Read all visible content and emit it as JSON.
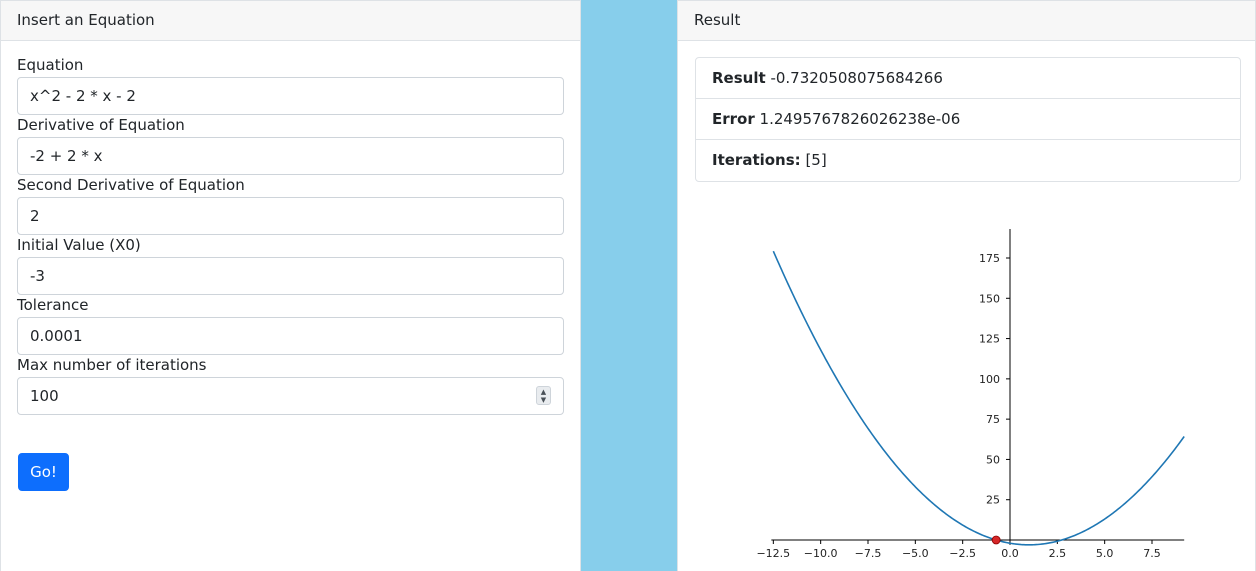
{
  "left_panel": {
    "title": "Insert an Equation",
    "fields": [
      {
        "label": "Equation",
        "value": "x^2 - 2 * x - 2"
      },
      {
        "label": "Derivative of Equation",
        "value": "-2 + 2 * x"
      },
      {
        "label": "Second Derivative of Equation",
        "value": "2"
      },
      {
        "label": "Initial Value (X0)",
        "value": "-3"
      },
      {
        "label": "Tolerance",
        "value": "0.0001"
      },
      {
        "label": "Max number of iterations",
        "value": "100"
      }
    ],
    "go_label": "Go!"
  },
  "right_panel": {
    "title": "Result",
    "result_label": "Result",
    "result_value": "-0.7320508075684266",
    "error_label": "Error",
    "error_value": "1.2495767826026238e-06",
    "iterations_label": "Iterations:",
    "iterations_value": "[5]"
  },
  "colors": {
    "accent": "#0d6efd",
    "spacer": "#87ceeb",
    "curve": "#1f77b4",
    "root_marker": "#d62728"
  },
  "chart_data": {
    "type": "line",
    "title": "",
    "xlabel": "",
    "ylabel": "",
    "function": "x^2 - 2 * x - 2",
    "x_range": [
      -12.5,
      9.2
    ],
    "ylim": [
      -3,
      193
    ],
    "xticks": [
      -12.5,
      -10.0,
      -7.5,
      -5.0,
      -2.5,
      0.0,
      2.5,
      5.0,
      7.5
    ],
    "xtick_labels": [
      "−12.5",
      "−10.0",
      "−7.5",
      "−5.0",
      "−2.5",
      "0.0",
      "2.5",
      "5.0",
      "7.5"
    ],
    "yticks": [
      25,
      50,
      75,
      100,
      125,
      150,
      175
    ],
    "ytick_labels": [
      "25",
      "50",
      "75",
      "100",
      "125",
      "150",
      "175"
    ],
    "root": {
      "x": -0.7320508075684266,
      "y": 0
    },
    "grid": false,
    "spines": "centered at origin"
  }
}
